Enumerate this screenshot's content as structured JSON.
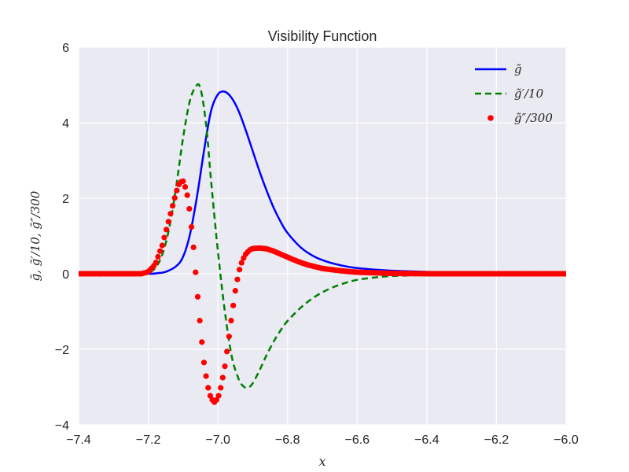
{
  "chart_data": {
    "type": "line",
    "title": "Visibility Function",
    "xlabel": "x",
    "ylabel": "g̃, g̃′/10, g̃″/300",
    "xlim": [
      -7.4,
      -6.0
    ],
    "ylim": [
      -4,
      6
    ],
    "xticks": [
      -7.4,
      -7.2,
      -7.0,
      -6.8,
      -6.6,
      -6.4,
      -6.2,
      -6.0
    ],
    "xtick_labels": [
      "−7.4",
      "−7.2",
      "−7.0",
      "−6.8",
      "−6.6",
      "−6.4",
      "−6.2",
      "−6.0"
    ],
    "yticks": [
      -4,
      -2,
      0,
      2,
      4,
      6
    ],
    "ytick_labels": [
      "−4",
      "−2",
      "0",
      "2",
      "4",
      "6"
    ],
    "grid": true,
    "legend_position": "top-right",
    "colors": {
      "background": "#eaeaf2",
      "grid": "#ffffff",
      "series_g": "#0000ff",
      "series_gp": "#007f00",
      "series_gpp": "#ff0000"
    },
    "series": [
      {
        "name": "g̃",
        "style": "solid",
        "x": [
          -7.4,
          -7.3,
          -7.2,
          -7.17,
          -7.15,
          -7.12,
          -7.1,
          -7.08,
          -7.06,
          -7.04,
          -7.02,
          -7.0,
          -6.98,
          -6.96,
          -6.94,
          -6.92,
          -6.9,
          -6.88,
          -6.86,
          -6.84,
          -6.82,
          -6.8,
          -6.76,
          -6.72,
          -6.68,
          -6.64,
          -6.6,
          -6.55,
          -6.5,
          -6.4,
          -6.3,
          -6.2,
          -6.1,
          -6.0
        ],
        "y": [
          0.0,
          0.0,
          0.0,
          0.02,
          0.05,
          0.2,
          0.45,
          1.05,
          2.05,
          3.25,
          4.3,
          4.75,
          4.82,
          4.65,
          4.3,
          3.8,
          3.25,
          2.7,
          2.2,
          1.75,
          1.38,
          1.08,
          0.68,
          0.44,
          0.3,
          0.21,
          0.15,
          0.11,
          0.08,
          0.05,
          0.03,
          0.02,
          0.01,
          0.0
        ]
      },
      {
        "name": "g̃′/10",
        "style": "dashed",
        "x": [
          -7.4,
          -7.3,
          -7.22,
          -7.2,
          -7.18,
          -7.16,
          -7.14,
          -7.12,
          -7.1,
          -7.08,
          -7.06,
          -7.05,
          -7.04,
          -7.03,
          -7.02,
          -7.0,
          -6.98,
          -6.96,
          -6.94,
          -6.93,
          -6.92,
          -6.91,
          -6.9,
          -6.88,
          -6.86,
          -6.84,
          -6.82,
          -6.8,
          -6.76,
          -6.72,
          -6.68,
          -6.64,
          -6.6,
          -6.55,
          -6.5,
          -6.4,
          -6.3,
          -6.2,
          -6.0
        ],
        "y": [
          0.0,
          0.0,
          0.0,
          0.03,
          0.15,
          0.5,
          1.2,
          2.3,
          3.6,
          4.6,
          5.0,
          4.9,
          4.4,
          3.6,
          2.5,
          0.6,
          -1.0,
          -2.2,
          -2.8,
          -2.95,
          -3.02,
          -3.0,
          -2.9,
          -2.55,
          -2.15,
          -1.8,
          -1.5,
          -1.25,
          -0.88,
          -0.6,
          -0.4,
          -0.26,
          -0.16,
          -0.1,
          -0.06,
          -0.03,
          -0.01,
          0.0,
          0.0
        ]
      },
      {
        "name": "g̃″/300",
        "style": "markers",
        "x": [
          -7.4,
          -7.3,
          -7.22,
          -7.2,
          -7.18,
          -7.16,
          -7.14,
          -7.12,
          -7.11,
          -7.1,
          -7.09,
          -7.08,
          -7.07,
          -7.06,
          -7.05,
          -7.04,
          -7.03,
          -7.02,
          -7.01,
          -7.0,
          -6.99,
          -6.98,
          -6.97,
          -6.96,
          -6.95,
          -6.94,
          -6.93,
          -6.92,
          -6.91,
          -6.9,
          -6.88,
          -6.86,
          -6.84,
          -6.82,
          -6.8,
          -6.78,
          -6.76,
          -6.74,
          -6.7,
          -6.65,
          -6.6,
          -6.5,
          -6.4,
          -6.2,
          -6.0
        ],
        "y": [
          0.0,
          0.0,
          0.0,
          0.05,
          0.25,
          0.75,
          1.45,
          2.15,
          2.42,
          2.45,
          2.2,
          1.6,
          0.7,
          -0.4,
          -1.45,
          -2.35,
          -2.95,
          -3.3,
          -3.4,
          -3.3,
          -2.95,
          -2.45,
          -1.8,
          -1.1,
          -0.45,
          0.05,
          0.35,
          0.52,
          0.62,
          0.67,
          0.68,
          0.66,
          0.6,
          0.52,
          0.44,
          0.36,
          0.29,
          0.23,
          0.14,
          0.08,
          0.04,
          0.01,
          0.0,
          0.0,
          0.0
        ]
      }
    ]
  }
}
